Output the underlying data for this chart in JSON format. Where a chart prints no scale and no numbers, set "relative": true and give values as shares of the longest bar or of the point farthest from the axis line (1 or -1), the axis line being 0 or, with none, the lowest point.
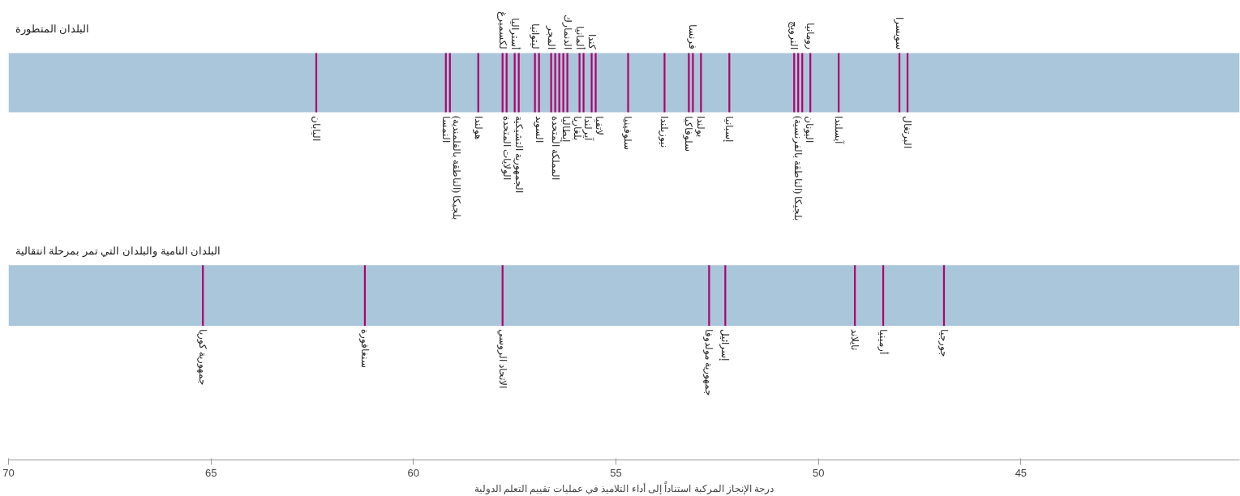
{
  "chart_data": [
    {
      "type": "bar",
      "relative": true,
      "title": "البلدان المتطورة",
      "xlim": [
        70,
        39.6
      ],
      "tick_labels": false,
      "bands": [
        {
          "axis": "x",
          "from": 70,
          "to": 39.6,
          "color": "#a9c6da"
        }
      ],
      "series": [
        {
          "color": "#b0006a",
          "x": [
            62.4,
            59.2,
            59.1,
            58.4,
            57.8,
            57.7,
            57.5,
            57.4,
            57.0,
            56.9,
            56.6,
            56.5,
            56.4,
            56.3,
            56.2,
            55.9,
            55.8,
            55.6,
            55.5,
            54.7,
            53.8,
            53.2,
            53.1,
            52.9,
            52.2,
            50.6,
            50.5,
            50.4,
            50.2,
            49.5,
            48.0,
            47.8
          ],
          "values": [
            1,
            1,
            1,
            1,
            1,
            1,
            1,
            1,
            1,
            1,
            1,
            1,
            1,
            1,
            1,
            1,
            1,
            1,
            1,
            1,
            1,
            1,
            1,
            1,
            1,
            1,
            1,
            1,
            1,
            1,
            1,
            1
          ]
        }
      ],
      "annotations": [
        {
          "text": "اليابان",
          "x": 62.4,
          "y": 0
        },
        {
          "text": "النمسا",
          "x": 59.2,
          "y": 0
        },
        {
          "text": "بلجيكا (الناطقة بالفلمندية)",
          "x": 59.1,
          "y": 0
        },
        {
          "text": "هولندا",
          "x": 58.4,
          "y": 0
        },
        {
          "text": "لكسمبرغ",
          "x": 57.8,
          "y": 1
        },
        {
          "text": "الولايات المتحدة",
          "x": 57.7,
          "y": 0
        },
        {
          "text": "أستراليا",
          "x": 57.5,
          "y": 1
        },
        {
          "text": "الجمهورية التشيكية",
          "x": 57.4,
          "y": 0
        },
        {
          "text": "ليتوانيا",
          "x": 57.0,
          "y": 1
        },
        {
          "text": "السويد",
          "x": 56.9,
          "y": 0
        },
        {
          "text": "المجر",
          "x": 56.6,
          "y": 1
        },
        {
          "text": "المملكة المتحدة",
          "x": 56.5,
          "y": 0
        },
        {
          "text": "إيطاليا",
          "x": 56.4,
          "y": 0
        },
        {
          "text": "بلغاريا",
          "x": 56.3,
          "y": 0
        },
        {
          "text": "الدنمارك",
          "x": 56.2,
          "y": 1
        },
        {
          "text": "ألمانيا",
          "x": 55.9,
          "y": 1
        },
        {
          "text": "آيرلندا",
          "x": 55.8,
          "y": 0
        },
        {
          "text": "كندا",
          "x": 55.6,
          "y": 1
        },
        {
          "text": "لاتفيا",
          "x": 55.5,
          "y": 0
        },
        {
          "text": "سلوفينيا",
          "x": 54.7,
          "y": 0
        },
        {
          "text": "نيوزيلندا",
          "x": 53.8,
          "y": 0
        },
        {
          "text": "سلوفاكيا",
          "x": 53.2,
          "y": 0
        },
        {
          "text": "فرنسا",
          "x": 53.1,
          "y": 1
        },
        {
          "text": "بولندا",
          "x": 52.9,
          "y": 0
        },
        {
          "text": "إسبانيا",
          "x": 52.2,
          "y": 0
        },
        {
          "text": "بلجيكا (الناطقة بالفرنسية)",
          "x": 50.5,
          "y": 0
        },
        {
          "text": "النرويج",
          "x": 50.6,
          "y": 1
        },
        {
          "text": "اليونان",
          "x": 50.4,
          "y": 0
        },
        {
          "text": "رومانيا",
          "x": 50.2,
          "y": 1
        },
        {
          "text": "آيسلندا",
          "x": 49.5,
          "y": 0
        },
        {
          "text": "سويسرا",
          "x": 48.0,
          "y": 1
        },
        {
          "text": "البرتغال",
          "x": 47.8,
          "y": 0
        }
      ]
    },
    {
      "type": "bar",
      "relative": true,
      "title": "البلدان النامية والبلدان التي تمر بمرحلة انتقالية",
      "xlabel": "درجة الإنجاز المركبة استناداً إلى أداء التلاميذ في عمليات تقييم التعلم الدولية",
      "xlim": [
        70,
        39.6
      ],
      "xticks": [
        70,
        65,
        60,
        55,
        50,
        45
      ],
      "tick_labels": "x",
      "bands": [
        {
          "axis": "x",
          "from": 70,
          "to": 39.6,
          "color": "#a9c6da"
        }
      ],
      "series": [
        {
          "color": "#b0006a",
          "x": [
            65.2,
            61.2,
            57.8,
            52.7,
            52.3,
            49.1,
            48.4,
            46.9
          ],
          "values": [
            1,
            1,
            1,
            1,
            1,
            1,
            1,
            1
          ]
        }
      ],
      "annotations": [
        {
          "text": "جمهورية كوريا",
          "x": 65.2,
          "y": 0
        },
        {
          "text": "سنغافورة",
          "x": 61.2,
          "y": 0
        },
        {
          "text": "الاتحاد الروسي",
          "x": 57.8,
          "y": 0
        },
        {
          "text": "جمهورية مولدوفا",
          "x": 52.7,
          "y": 0
        },
        {
          "text": "إسرائيل",
          "x": 52.3,
          "y": 0
        },
        {
          "text": "تايلاند",
          "x": 49.1,
          "y": 0
        },
        {
          "text": "أرمينيا",
          "x": 48.4,
          "y": 0
        },
        {
          "text": "جورجيا",
          "x": 46.9,
          "y": 0
        }
      ]
    }
  ]
}
